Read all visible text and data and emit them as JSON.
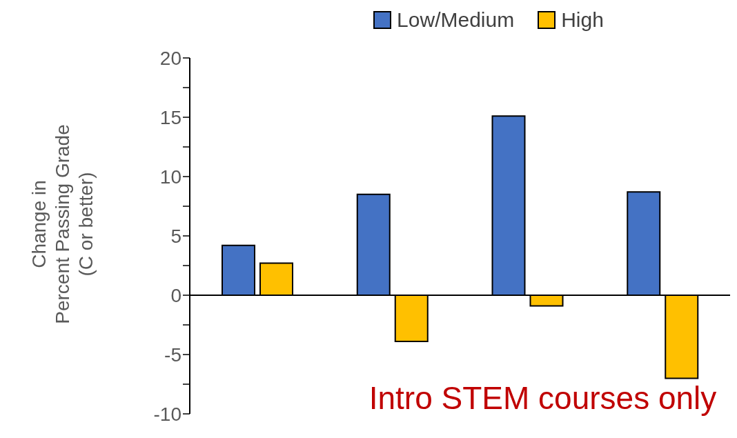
{
  "chart_data": {
    "type": "bar",
    "ylabel": "Change in\nPercent Passing Grade\n(C or better)",
    "categories": [
      null,
      null,
      null,
      null
    ],
    "series": [
      {
        "name": "Low/Medium",
        "color": "#4472c4",
        "values": [
          4.2,
          8.5,
          15.1,
          8.7
        ]
      },
      {
        "name": "High",
        "color": "#ffc000",
        "values": [
          2.7,
          -3.9,
          -0.9,
          -7.0
        ]
      }
    ],
    "ylim": [
      -10,
      20
    ],
    "yticks": [
      -10,
      {
        "value": -7.5,
        "label": null
      },
      -5,
      {
        "value": -2.5,
        "label": null
      },
      0,
      {
        "value": 2.5,
        "label": null
      },
      5,
      {
        "value": 7.5,
        "label": null
      },
      10,
      {
        "value": 12.5,
        "label": null
      },
      15,
      {
        "value": 17.5,
        "label": null
      },
      20
    ],
    "legend": "top",
    "ref_lines": [
      {
        "axis": "y",
        "value": 0,
        "color": "#000000"
      }
    ],
    "tick_labels": "y",
    "annotations": [
      "Intro STEM courses only"
    ]
  }
}
